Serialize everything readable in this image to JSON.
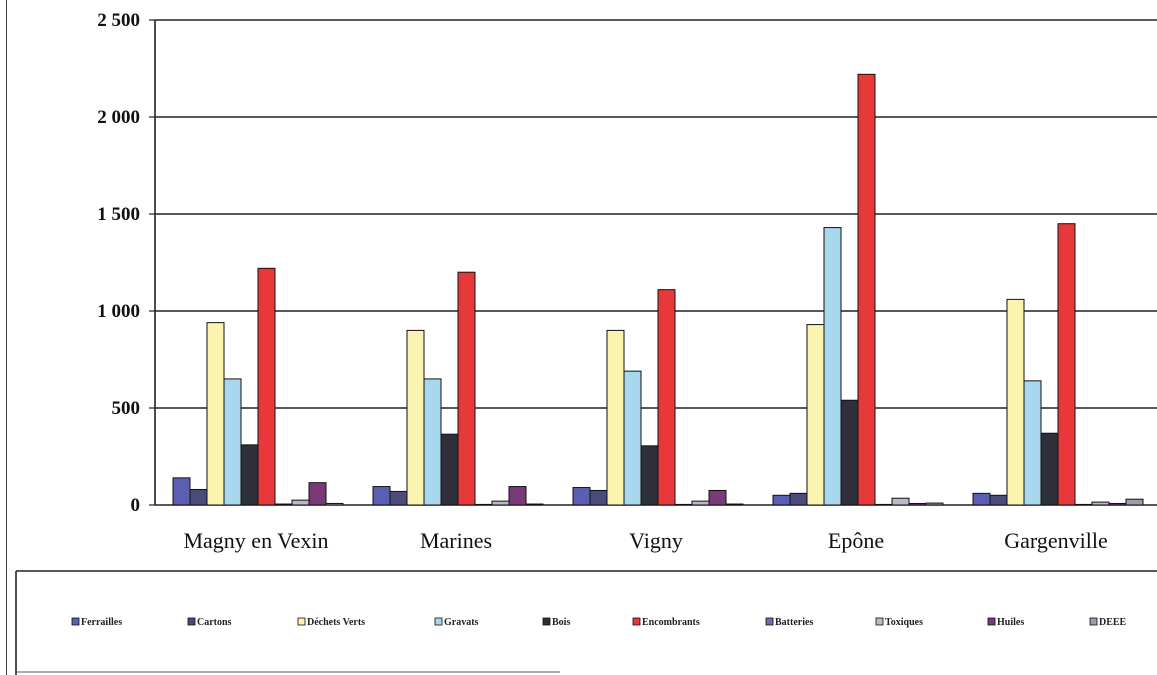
{
  "chart_data": {
    "type": "bar",
    "title": "",
    "xlabel": "",
    "ylabel": "",
    "ylim": [
      0,
      2500
    ],
    "yticks": [
      0,
      500,
      1000,
      1500,
      2000,
      2500
    ],
    "ytick_labels": [
      "0",
      "500",
      "1 000",
      "1 500",
      "2 000",
      "2 500"
    ],
    "grid": true,
    "legend_position": "bottom",
    "categories": [
      "Magny en Vexin",
      "Marines",
      "Vigny",
      "Epône",
      "Gargenville"
    ],
    "series": [
      {
        "name": "Ferrailles",
        "color": "#5b5fb4",
        "values": [
          140,
          95,
          90,
          50,
          60
        ]
      },
      {
        "name": "Cartons",
        "color": "#4b4b7a",
        "values": [
          80,
          70,
          75,
          60,
          50
        ]
      },
      {
        "name": "Déchets Verts",
        "color": "#fbf3b0",
        "values": [
          940,
          900,
          900,
          930,
          1060
        ]
      },
      {
        "name": "Gravats",
        "color": "#a8d8ee",
        "values": [
          650,
          650,
          690,
          1430,
          640
        ]
      },
      {
        "name": "Bois",
        "color": "#2f2f3a",
        "values": [
          310,
          365,
          305,
          540,
          370
        ]
      },
      {
        "name": "Encombrants",
        "color": "#e8393a",
        "values": [
          1220,
          1200,
          1110,
          2220,
          1450
        ]
      },
      {
        "name": "Batteries",
        "color": "#6f6fa8",
        "values": [
          5,
          3,
          3,
          3,
          3
        ]
      },
      {
        "name": "Toxiques",
        "color": "#b9b9c9",
        "values": [
          25,
          20,
          20,
          35,
          15
        ]
      },
      {
        "name": "Huiles",
        "color": "#7a3a78",
        "values": [
          115,
          95,
          75,
          8,
          8
        ]
      },
      {
        "name": "DEEE",
        "color": "#9c9cac",
        "values": [
          8,
          5,
          5,
          10,
          30
        ]
      }
    ]
  }
}
